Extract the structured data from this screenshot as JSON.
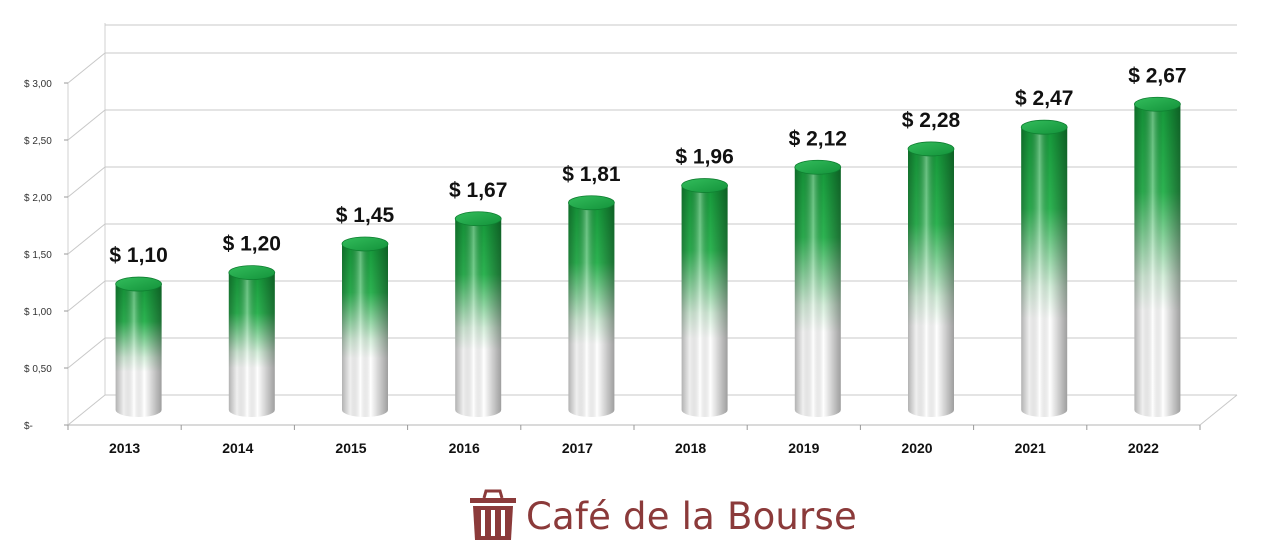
{
  "chart_data": {
    "type": "bar",
    "categories": [
      "2013",
      "2014",
      "2015",
      "2016",
      "2017",
      "2018",
      "2019",
      "2020",
      "2021",
      "2022"
    ],
    "values": [
      1.1,
      1.2,
      1.45,
      1.67,
      1.81,
      1.96,
      2.12,
      2.28,
      2.47,
      2.67
    ],
    "data_labels": [
      "$ 1,10",
      "$ 1,20",
      "$ 1,45",
      "$ 1,67",
      "$ 1,81",
      "$ 1,96",
      "$ 2,12",
      "$ 2,28",
      "$ 2,47",
      "$ 2,67"
    ],
    "y_ticks": [
      0,
      0.5,
      1,
      1.5,
      2,
      2.5,
      3
    ],
    "y_tick_labels": [
      "$-",
      "$ 0,50",
      "$ 1,00",
      "$ 1,50",
      "$ 2,00",
      "$ 2,50",
      "$ 3,00"
    ],
    "ylim": [
      0,
      3
    ],
    "title": "",
    "xlabel": "",
    "ylabel": "",
    "grid": true,
    "legend": "none",
    "style": "3d-cylinder",
    "bar_color_top": "#1aa33f",
    "bar_color_bottom": "#ffffff"
  },
  "brand": {
    "name": "Café de la Bourse",
    "icon": "trash-can-logo-icon",
    "color": "#8b3a3a"
  }
}
